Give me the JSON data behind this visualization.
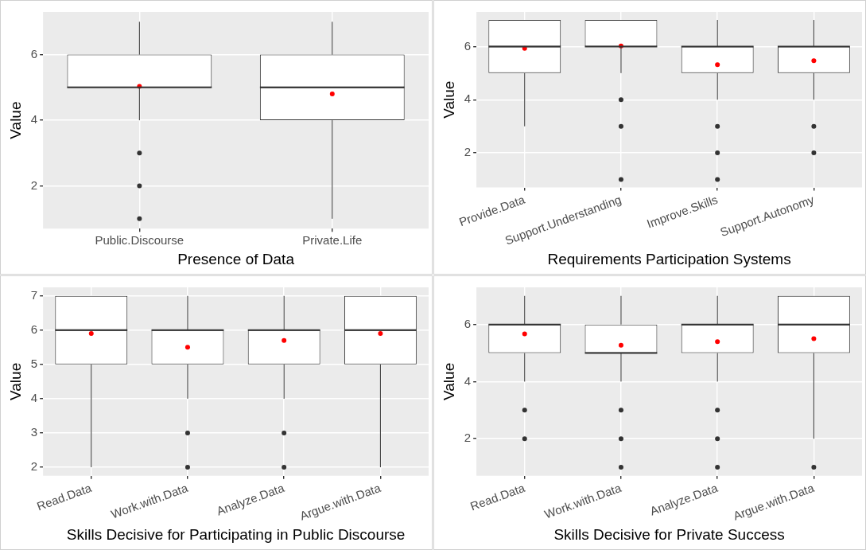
{
  "chart_data": [
    {
      "type": "box",
      "xlabel": "Presence of Data",
      "ylabel": "Value",
      "categories": [
        "Public.Discourse",
        "Private.Life"
      ],
      "ylim": [
        0.7,
        7.3
      ],
      "yticks": [
        2,
        4,
        6
      ],
      "grid": true,
      "boxes": [
        {
          "low": 4,
          "q1": 5,
          "median": 5,
          "q3": 6,
          "high": 7,
          "mean": 5.03,
          "outliers": [
            3,
            2,
            1
          ]
        },
        {
          "low": 1,
          "q1": 4,
          "median": 5,
          "q3": 6,
          "high": 7,
          "mean": 4.8
        }
      ]
    },
    {
      "type": "box",
      "xlabel": "Requirements Participation Systems",
      "ylabel": "Value",
      "categories": [
        "Provide.Data",
        "Support.Understanding",
        "Improve.Skills",
        "Support.Autonomy"
      ],
      "ylim": [
        0.7,
        7.3
      ],
      "yticks": [
        2,
        4,
        6
      ],
      "grid": true,
      "boxes": [
        {
          "low": 3,
          "q1": 5,
          "median": 6,
          "q3": 7,
          "high": 7,
          "mean": 5.93
        },
        {
          "low": 5,
          "q1": 6,
          "median": 6,
          "q3": 7,
          "high": 7,
          "mean": 6.02,
          "outliers": [
            4,
            3,
            1
          ]
        },
        {
          "low": 4,
          "q1": 5,
          "median": 6,
          "q3": 6,
          "high": 7,
          "mean": 5.32,
          "outliers": [
            3,
            2,
            1
          ]
        },
        {
          "low": 4,
          "q1": 5,
          "median": 6,
          "q3": 6,
          "high": 7,
          "mean": 5.47,
          "outliers": [
            3,
            2
          ]
        }
      ]
    },
    {
      "type": "box",
      "xlabel": "Skills Decisive for Participating in Public Discourse",
      "ylabel": "Value",
      "categories": [
        "Read.Data",
        "Work.with.Data",
        "Analyze.Data",
        "Argue.with.Data"
      ],
      "ylim": [
        1.75,
        7.25
      ],
      "yticks": [
        2,
        3,
        4,
        5,
        6,
        7
      ],
      "grid": true,
      "boxes": [
        {
          "low": 2,
          "q1": 5,
          "median": 6,
          "q3": 7,
          "high": 7,
          "mean": 5.9
        },
        {
          "low": 4,
          "q1": 5,
          "median": 6,
          "q3": 6,
          "high": 7,
          "mean": 5.5,
          "outliers": [
            3,
            2
          ]
        },
        {
          "low": 4,
          "q1": 5,
          "median": 6,
          "q3": 6,
          "high": 7,
          "mean": 5.7,
          "outliers": [
            3,
            2
          ]
        },
        {
          "low": 2,
          "q1": 5,
          "median": 6,
          "q3": 7,
          "high": 7,
          "mean": 5.9
        }
      ]
    },
    {
      "type": "box",
      "xlabel": "Skills Decisive for Private Success",
      "ylabel": "Value",
      "categories": [
        "Read.Data",
        "Work.with.Data",
        "Analyze.Data",
        "Argue.with.Data"
      ],
      "ylim": [
        0.7,
        7.3
      ],
      "yticks": [
        2,
        4,
        6
      ],
      "grid": true,
      "boxes": [
        {
          "low": 4,
          "q1": 5,
          "median": 6,
          "q3": 6,
          "high": 7,
          "mean": 5.67,
          "outliers": [
            3,
            2
          ]
        },
        {
          "low": 4,
          "q1": 5,
          "median": 5,
          "q3": 6,
          "high": 7,
          "mean": 5.27,
          "outliers": [
            3,
            2,
            1
          ]
        },
        {
          "low": 4,
          "q1": 5,
          "median": 6,
          "q3": 6,
          "high": 7,
          "mean": 5.4,
          "outliers": [
            3,
            2,
            1
          ]
        },
        {
          "low": 2,
          "q1": 5,
          "median": 6,
          "q3": 7,
          "high": 7,
          "mean": 5.5,
          "outliers": [
            1
          ]
        }
      ]
    }
  ]
}
